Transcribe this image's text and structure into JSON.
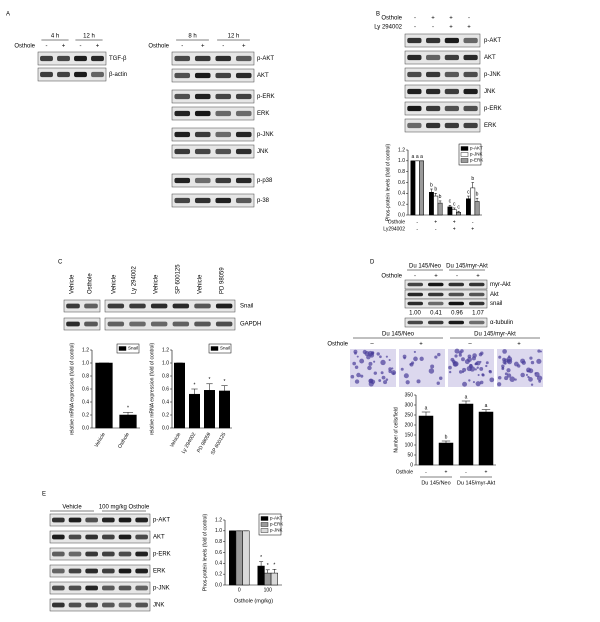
{
  "panels": {
    "A": {
      "letter": "A",
      "left": {
        "headers": [
          "4 h",
          "12 h"
        ],
        "treatment": "Osthole",
        "signs": [
          "-",
          "+",
          "-",
          "+"
        ],
        "bands": [
          "TGF-β",
          "β-actin"
        ]
      },
      "right": {
        "headers": [
          "8 h",
          "12 h"
        ],
        "treatment": "Osthole",
        "signs": [
          "-",
          "+",
          "-",
          "+"
        ],
        "bands": [
          "p-AKT",
          "AKT",
          "p-ERK",
          "ERK",
          "p-JNK",
          "JNK",
          "p-p38",
          "p-38"
        ]
      }
    },
    "B": {
      "letter": "B",
      "rows": [
        {
          "name": "Osthole",
          "signs": [
            "-",
            "+",
            "+",
            "-"
          ]
        },
        {
          "name": "Ly 294002",
          "signs": [
            "-",
            "-",
            "+",
            "+"
          ]
        }
      ],
      "bands": [
        "p-AKT",
        "AKT",
        "p-JNK",
        "JNK",
        "p-ERK",
        "ERK"
      ]
    },
    "C": {
      "letter": "C",
      "lanes": [
        "Vehicle",
        "Osthole",
        "Vehicle",
        "Ly 294002",
        "Vehicle",
        "SP 600125",
        "Vehicle",
        "PD 98059"
      ],
      "bands": [
        "Snail",
        "GAPDH"
      ]
    },
    "D": {
      "letter": "D",
      "groups": [
        "Du 145/Neo",
        "Du 145/myr-Akt"
      ],
      "treatment": "Osthole",
      "signs": [
        "-",
        "+",
        "-",
        "+"
      ],
      "bands": [
        "myr-Akt",
        "Akt",
        "snail",
        "α-tubulin"
      ],
      "ratios": [
        "1.00",
        "0.41",
        "0.96",
        "1.07"
      ],
      "image_groups": [
        "Du 145/Neo",
        "Du 145/myr-Akt"
      ],
      "image_treatment": "Osthole",
      "image_signs": [
        "–",
        "+",
        "–",
        "+"
      ]
    },
    "E": {
      "letter": "E",
      "groups": [
        "Vehicle",
        "100 mg/kg Osthole"
      ],
      "bands": [
        "p-AKT",
        "AKT",
        "p-ERK",
        "ERK",
        "p-JNK",
        "JNK"
      ]
    }
  },
  "chart_data": [
    {
      "type": "bar",
      "ylabel": "Phos-protein levels (fold of control)",
      "categories": [
        null,
        null,
        null,
        null
      ],
      "x_rows": [
        {
          "name": "Osthole",
          "signs": [
            "-",
            "+",
            "+",
            "-"
          ]
        },
        {
          "name": "Ly294002",
          "signs": [
            "-",
            "-",
            "+",
            "+"
          ]
        }
      ],
      "series": [
        {
          "name": "p-AKT",
          "color": "#000000",
          "values": [
            1,
            0.42,
            0.15,
            0.3
          ],
          "errors": [
            0,
            0.06,
            0.03,
            0.05
          ],
          "sig": [
            "a",
            "b",
            "c",
            "c"
          ]
        },
        {
          "name": "p-JNK",
          "color": "#ffffff",
          "values": [
            1,
            0.35,
            0.1,
            0.5
          ],
          "errors": [
            0,
            0.05,
            0.03,
            0.1
          ],
          "sig": [
            "a",
            "b",
            "c",
            "b"
          ]
        },
        {
          "name": "p-ERK",
          "color": "#9a9a9a",
          "values": [
            1,
            0.22,
            0.05,
            0.25
          ],
          "errors": [
            0,
            0.04,
            0.02,
            0.06
          ],
          "sig": [
            "a",
            "b",
            "c",
            "b"
          ]
        }
      ],
      "ylim": [
        0,
        1.2
      ],
      "yticks": [
        {
          "value": 0,
          "label": "0.0"
        },
        {
          "value": 0.2,
          "label": "0.2"
        },
        {
          "value": 0.4,
          "label": "0.4"
        },
        {
          "value": 0.6,
          "label": "0.6"
        },
        {
          "value": 0.8,
          "label": "0.8"
        },
        {
          "value": 1,
          "label": "1.0"
        },
        {
          "value": 1.2,
          "label": "1.2"
        }
      ],
      "legend": "upper right"
    },
    {
      "type": "bar",
      "ylabel": "relative mRNA expression (fold of control)",
      "categories": [
        "Vehicle",
        "Osthole"
      ],
      "series": [
        {
          "name": "Snail",
          "color": "#000000",
          "values": [
            1,
            0.2
          ],
          "errors": [
            0,
            0.04
          ],
          "sig": [
            null,
            "*"
          ]
        }
      ],
      "ylim": [
        0,
        1.2
      ],
      "yticks": [
        {
          "value": 0,
          "label": "0.0"
        },
        {
          "value": 0.2,
          "label": "0.2"
        },
        {
          "value": 0.4,
          "label": "0.4"
        },
        {
          "value": 0.6,
          "label": "0.6"
        },
        {
          "value": 0.8,
          "label": "0.8"
        },
        {
          "value": 1,
          "label": "1.0"
        },
        {
          "value": 1.2,
          "label": "1.2"
        }
      ],
      "legend": "upper right"
    },
    {
      "type": "bar",
      "ylabel": "relative mRNA expression (fold of control)",
      "categories": [
        "Vehicle",
        "Ly 294002",
        "PD 98059",
        "SP 600125"
      ],
      "series": [
        {
          "name": "Snail",
          "color": "#000000",
          "values": [
            1,
            0.52,
            0.58,
            0.57
          ],
          "errors": [
            0,
            0.08,
            0.1,
            0.08
          ],
          "sig": [
            null,
            "*",
            "*",
            "*"
          ]
        }
      ],
      "ylim": [
        0,
        1.2
      ],
      "yticks": [
        {
          "value": 0,
          "label": "0.0"
        },
        {
          "value": 0.2,
          "label": "0.2"
        },
        {
          "value": 0.4,
          "label": "0.4"
        },
        {
          "value": 0.6,
          "label": "0.6"
        },
        {
          "value": 0.8,
          "label": "0.8"
        },
        {
          "value": 1,
          "label": "1.0"
        },
        {
          "value": 1.2,
          "label": "1.2"
        }
      ],
      "legend": "upper right"
    },
    {
      "type": "bar",
      "ylabel": "Number of cells/field",
      "categories": [
        null,
        null,
        null,
        null
      ],
      "x_rows": [
        {
          "name": "Osthole",
          "signs": [
            "-",
            "+",
            "-",
            "+"
          ]
        }
      ],
      "group_labels": [
        "Du 145/Neo",
        "Du 145/myr-Akt"
      ],
      "series": [
        {
          "color": "#000000",
          "values": [
            245,
            110,
            305,
            265
          ],
          "errors": [
            20,
            10,
            15,
            12
          ],
          "sig": [
            "a",
            "b",
            "a",
            "a"
          ]
        }
      ],
      "ylim": [
        0,
        350
      ],
      "yticks": [
        0,
        50,
        100,
        150,
        200,
        250,
        300,
        350
      ]
    },
    {
      "type": "bar",
      "ylabel": "Phos-protein levels (fold of control)",
      "xlabel": "Osthole (mg/kg)",
      "categories": [
        "0",
        "100"
      ],
      "series": [
        {
          "name": "p-AKT",
          "color": "#000000",
          "values": [
            1,
            0.35
          ],
          "errors": [
            0,
            0.08
          ],
          "sig": [
            null,
            "*"
          ]
        },
        {
          "name": "p-ERK",
          "color": "#9a9a9a",
          "values": [
            1,
            0.22
          ],
          "errors": [
            0,
            0.06
          ],
          "sig": [
            null,
            "*"
          ]
        },
        {
          "name": "p-JNK",
          "color": "#d9d9d9",
          "values": [
            1,
            0.22
          ],
          "errors": [
            0,
            0.07
          ],
          "sig": [
            null,
            "*"
          ]
        }
      ],
      "ylim": [
        0,
        1.2
      ],
      "yticks": [
        {
          "value": 0,
          "label": "0.0"
        },
        {
          "value": 0.2,
          "label": "0.2"
        },
        {
          "value": 0.4,
          "label": "0.4"
        },
        {
          "value": 0.6,
          "label": "0.6"
        },
        {
          "value": 0.8,
          "label": "0.8"
        },
        {
          "value": 1,
          "label": "1.0"
        },
        {
          "value": 1.2,
          "label": "1.2"
        }
      ],
      "legend": "upper right"
    }
  ]
}
